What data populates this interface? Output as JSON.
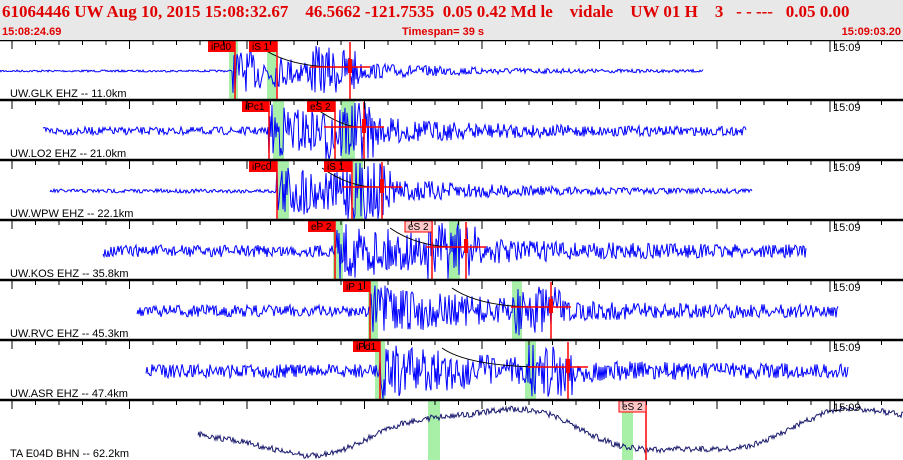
{
  "header": {
    "title": "61064446 UW Aug 10, 2015 15:08:32.67    46.5662 -121.7535  0.05 0.42 Md le    vidale    UW 01 H    3   - - ---   0.05 0.00",
    "start_time": "15:08:24.69",
    "timespan": "Timespan=  39 s",
    "end_time": "15:09:03.20"
  },
  "colors": {
    "header_text": "#e00000",
    "trace": "#0000ff",
    "long_period_trace": "#1a1a6e",
    "pick_box": "#ff0000",
    "pick_box_light": "#ffc8c8",
    "pick_window": "#a8f0a8"
  },
  "traces": [
    {
      "label": "UW.GLK EHZ -- 11.0km",
      "time": "15:09",
      "picks": [
        "iPd0",
        "iS 1"
      ]
    },
    {
      "label": "UW.LO2 EHZ -- 21.0km",
      "time": "15:09",
      "picks": [
        "iPc1",
        "eS 2"
      ]
    },
    {
      "label": "UW.WPW EHZ -- 22.1km",
      "time": "15:09",
      "picks": [
        "iPc0",
        "iS 1"
      ]
    },
    {
      "label": "UW.KOS EHZ -- 35.8km",
      "time": "15:09",
      "picks": [
        "eP 2",
        "eS 2"
      ]
    },
    {
      "label": "UW.RVC EHZ -- 45.3km",
      "time": "15:09",
      "picks": [
        "iP 1"
      ]
    },
    {
      "label": "UW.ASR EHZ -- 47.4km",
      "time": "15:09",
      "picks": [
        "iPd1"
      ]
    },
    {
      "label": "TA E04D BHN -- 62.2km",
      "time": "15:09",
      "picks": [
        "eS 2"
      ]
    }
  ]
}
